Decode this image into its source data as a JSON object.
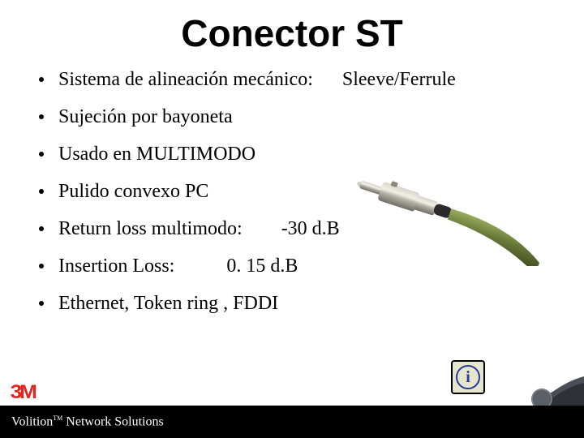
{
  "title": "Conector ST",
  "bullets": [
    {
      "text": "Sistema de alineación mecánico:",
      "value": "Sleeve/Ferrule",
      "valClass": "val1"
    },
    {
      "text": "Sujeción por bayoneta",
      "value": "",
      "valClass": ""
    },
    {
      "text": "Usado en MULTIMODO",
      "value": "",
      "valClass": ""
    },
    {
      "text": "Pulido convexo PC",
      "value": "",
      "valClass": ""
    },
    {
      "text": "Return loss multimodo:",
      "value": "-30 d.B",
      "valClass": "val2"
    },
    {
      "text": "Insertion Loss:",
      "value": "0. 15 d.B",
      "valClass": "val3"
    },
    {
      "text": "Ethernet, Token ring , FDDI",
      "value": "",
      "valClass": ""
    }
  ],
  "footer": {
    "brand": "Volition",
    "tm": "TM",
    "rest": " Network Solutions"
  },
  "logo3m": "3M",
  "infoIcon": {
    "glyph": "i"
  },
  "colors": {
    "logo3m": "#e52420",
    "title": "#000000",
    "bulletText": "#000000",
    "footerBg": "#000000",
    "footerText": "#ffffff",
    "infoBorder": "#2a3a99",
    "infoBg": "#e6e6cf",
    "connectorMetal": "#b5b3a8",
    "connectorMetalDark": "#6f6d63",
    "connectorCable": "#6a7a3a",
    "connectorCableDark": "#3d4820",
    "swooshDark": "#2e3138",
    "swooshDot": "#5a5f68"
  },
  "typography": {
    "titleFont": "Comic Sans MS",
    "titleSize": 46,
    "bodyFont": "Times New Roman",
    "bodySize": 24,
    "footerSize": 16
  }
}
